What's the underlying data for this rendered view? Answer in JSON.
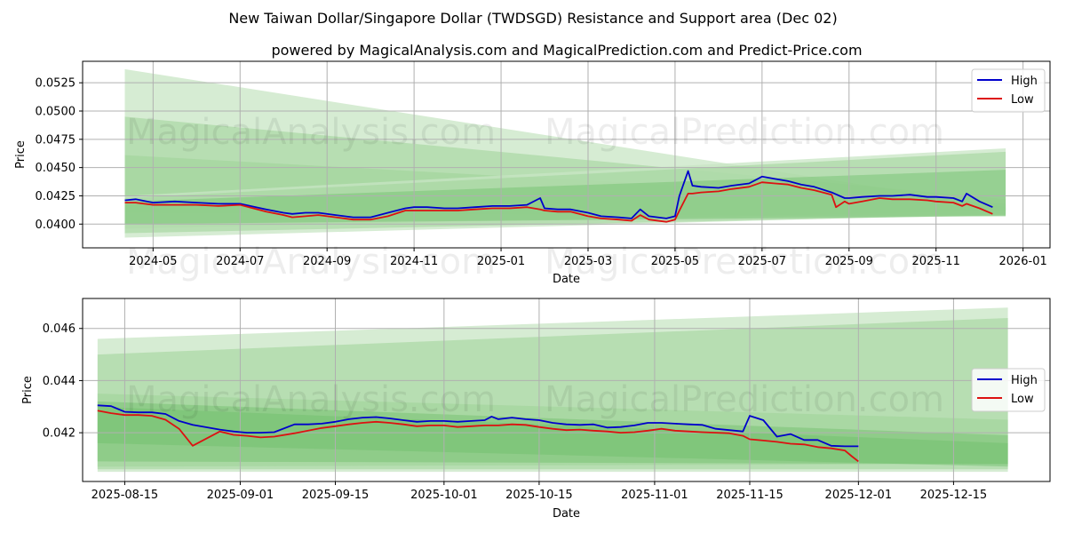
{
  "figure": {
    "title": "New Taiwan Dollar/Singapore Dollar (TWDSGD) Resistance and Support area (Dec 02)",
    "subtitle": "powered by MagicalAnalysis.com and MagicalPrediction.com and Predict-Price.com",
    "watermarks": [
      "MagicalAnalysis.com",
      "MagicalPrediction.com"
    ]
  },
  "colors": {
    "high": "#0000cc",
    "low": "#dd1111",
    "band_light": "#c8e6c4",
    "band_mid": "#9fd397",
    "band_dark": "#6fbf6a",
    "grid": "#b0b0b0"
  },
  "chart_data": [
    {
      "type": "line",
      "name": "top-chart",
      "xlabel": "Date",
      "ylabel": "Price",
      "x_tick_labels": [
        "2024-05",
        "2024-07",
        "2024-09",
        "2024-11",
        "2025-01",
        "2025-03",
        "2025-05",
        "2025-07",
        "2025-09",
        "2025-11",
        "2026-01"
      ],
      "x_tick_values": [
        0.0,
        2.0,
        4.0,
        6.0,
        8.0,
        10.0,
        12.0,
        14.0,
        16.0,
        18.0,
        20.0
      ],
      "y_tick_labels": [
        "0.0400",
        "0.0425",
        "0.0450",
        "0.0475",
        "0.0500",
        "0.0525"
      ],
      "y_tick_values": [
        0.04,
        0.0425,
        0.045,
        0.0475,
        0.05,
        0.0525
      ],
      "xlim": [
        -1.62,
        20.62
      ],
      "ylim": [
        0.0379,
        0.0544
      ],
      "legend": [
        {
          "label": "High"
        },
        {
          "label": "Low"
        }
      ],
      "legend_position": "top-right",
      "bands": [
        {
          "x": [
            -0.65,
            19.6
          ],
          "upper": [
            0.0537,
            0.0415
          ],
          "lower": [
            0.0396,
            0.0412
          ],
          "shade": "band_light"
        },
        {
          "x": [
            -0.65,
            19.6
          ],
          "upper": [
            0.0495,
            0.0422
          ],
          "lower": [
            0.04,
            0.0409
          ],
          "shade": "band_mid"
        },
        {
          "x": [
            -0.65,
            19.6
          ],
          "upper": [
            0.0461,
            0.0418
          ],
          "lower": [
            0.041,
            0.0407
          ],
          "shade": "band_mid"
        },
        {
          "x": [
            -0.65,
            19.6
          ],
          "upper": [
            0.0425,
            0.0467
          ],
          "lower": [
            0.0388,
            0.0409
          ],
          "shade": "band_light"
        },
        {
          "x": [
            -0.65,
            19.6
          ],
          "upper": [
            0.0423,
            0.0464
          ],
          "lower": [
            0.0392,
            0.0408
          ],
          "shade": "band_mid"
        },
        {
          "x": [
            -0.65,
            19.6
          ],
          "upper": [
            0.042,
            0.0448
          ],
          "lower": [
            0.04,
            0.0407
          ],
          "shade": "band_dark"
        }
      ],
      "series": [
        {
          "name": "High",
          "x": [
            -0.65,
            -0.4,
            0.0,
            0.5,
            1.0,
            1.5,
            2.0,
            2.6,
            3.0,
            3.2,
            3.5,
            3.8,
            4.2,
            4.6,
            5.0,
            5.4,
            5.8,
            6.0,
            6.3,
            6.7,
            7.0,
            7.4,
            7.8,
            8.2,
            8.6,
            8.9,
            9.0,
            9.3,
            9.6,
            10.0,
            10.3,
            10.7,
            11.0,
            11.2,
            11.4,
            11.8,
            12.0,
            12.1,
            12.3,
            12.4,
            12.6,
            13.0,
            13.3,
            13.7,
            14.0,
            14.3,
            14.6,
            14.9,
            15.2,
            15.6,
            15.9,
            16.0,
            16.3,
            16.7,
            17.0,
            17.4,
            17.8,
            18.0,
            18.4,
            18.6,
            18.7,
            19.0,
            19.3
          ],
          "values": [
            0.0421,
            0.0422,
            0.0419,
            0.042,
            0.0419,
            0.0418,
            0.0418,
            0.0413,
            0.041,
            0.0409,
            0.041,
            0.041,
            0.0408,
            0.0406,
            0.0406,
            0.041,
            0.0414,
            0.0415,
            0.0415,
            0.0414,
            0.0414,
            0.0415,
            0.0416,
            0.0416,
            0.0417,
            0.0423,
            0.0414,
            0.0413,
            0.0413,
            0.041,
            0.0407,
            0.0406,
            0.0405,
            0.0413,
            0.0407,
            0.0405,
            0.0407,
            0.0425,
            0.0447,
            0.0434,
            0.0433,
            0.0432,
            0.0434,
            0.0436,
            0.0442,
            0.044,
            0.0438,
            0.0435,
            0.0433,
            0.0428,
            0.0423,
            0.0423,
            0.0424,
            0.0425,
            0.0425,
            0.0426,
            0.0424,
            0.0424,
            0.0423,
            0.042,
            0.0427,
            0.042,
            0.0415
          ]
        },
        {
          "name": "Low",
          "x": [
            -0.65,
            -0.4,
            0.0,
            0.5,
            1.0,
            1.5,
            2.0,
            2.6,
            3.0,
            3.2,
            3.5,
            3.8,
            4.2,
            4.6,
            5.0,
            5.4,
            5.8,
            6.0,
            6.3,
            6.7,
            7.0,
            7.4,
            7.8,
            8.2,
            8.6,
            8.9,
            9.0,
            9.3,
            9.6,
            10.0,
            10.3,
            10.7,
            11.0,
            11.2,
            11.4,
            11.8,
            12.0,
            12.1,
            12.3,
            12.4,
            12.6,
            13.0,
            13.3,
            13.7,
            14.0,
            14.3,
            14.6,
            14.9,
            15.2,
            15.6,
            15.7,
            15.9,
            16.0,
            16.3,
            16.7,
            17.0,
            17.4,
            17.8,
            18.0,
            18.4,
            18.6,
            18.7,
            19.0,
            19.3
          ],
          "values": [
            0.0419,
            0.0419,
            0.0417,
            0.0417,
            0.0417,
            0.0416,
            0.0417,
            0.0411,
            0.0408,
            0.0406,
            0.0407,
            0.0408,
            0.0406,
            0.0404,
            0.0404,
            0.0407,
            0.0412,
            0.0412,
            0.0412,
            0.0412,
            0.0412,
            0.0413,
            0.0414,
            0.0414,
            0.0415,
            0.0413,
            0.0412,
            0.0411,
            0.0411,
            0.0407,
            0.0405,
            0.0404,
            0.0403,
            0.0408,
            0.0404,
            0.0402,
            0.0404,
            0.0412,
            0.0427,
            0.0427,
            0.0428,
            0.0429,
            0.0431,
            0.0433,
            0.0437,
            0.0436,
            0.0435,
            0.0432,
            0.043,
            0.0426,
            0.0415,
            0.042,
            0.0418,
            0.042,
            0.0423,
            0.0422,
            0.0422,
            0.0421,
            0.042,
            0.0419,
            0.0416,
            0.0418,
            0.0414,
            0.0409
          ]
        }
      ]
    },
    {
      "type": "line",
      "name": "bottom-chart",
      "xlabel": "Date",
      "ylabel": "Price",
      "x_tick_labels": [
        "2025-08-15",
        "2025-09-01",
        "2025-09-15",
        "2025-10-01",
        "2025-10-15",
        "2025-11-01",
        "2025-11-15",
        "2025-12-01",
        "2025-12-15"
      ],
      "x_tick_values": [
        0,
        17,
        31,
        47,
        61,
        78,
        92,
        108,
        122
      ],
      "y_tick_labels": [
        "0.042",
        "0.044",
        "0.046"
      ],
      "y_tick_values": [
        0.042,
        0.044,
        0.046
      ],
      "xlim": [
        -6.2,
        136.2
      ],
      "ylim": [
        0.04013,
        0.04715
      ],
      "legend": [
        {
          "label": "High"
        },
        {
          "label": "Low"
        }
      ],
      "legend_position": "right",
      "bands": [
        {
          "x": [
            -4,
            130
          ],
          "upper": [
            0.0456,
            0.0468
          ],
          "lower": [
            0.0405,
            0.0405
          ],
          "shade": "band_light"
        },
        {
          "x": [
            -4,
            130
          ],
          "upper": [
            0.045,
            0.0464
          ],
          "lower": [
            0.0406,
            0.0406
          ],
          "shade": "band_mid"
        },
        {
          "x": [
            -4,
            130
          ],
          "upper": [
            0.0435,
            0.0425
          ],
          "lower": [
            0.0407,
            0.0408
          ],
          "shade": "band_mid"
        },
        {
          "x": [
            -4,
            130
          ],
          "upper": [
            0.0432,
            0.0419
          ],
          "lower": [
            0.0409,
            0.0408
          ],
          "shade": "band_dark"
        },
        {
          "x": [
            -4,
            130
          ],
          "upper": [
            0.043,
            0.0416
          ],
          "lower": [
            0.0416,
            0.0407
          ],
          "shade": "band_dark"
        }
      ],
      "series": [
        {
          "name": "High",
          "x": [
            -4,
            -2,
            0,
            2,
            4,
            6,
            8,
            10,
            14,
            16,
            18,
            20,
            22,
            25,
            27,
            29,
            31,
            33,
            35,
            37,
            39,
            41,
            43,
            45,
            47,
            49,
            51,
            53,
            54,
            55,
            57,
            59,
            61,
            63,
            65,
            67,
            69,
            71,
            73,
            75,
            77,
            79,
            81,
            83,
            85,
            87,
            89,
            91,
            92,
            94,
            96,
            98,
            100,
            102,
            104,
            106,
            108
          ],
          "values": [
            0.04305,
            0.04302,
            0.0428,
            0.04278,
            0.04278,
            0.04272,
            0.04245,
            0.0423,
            0.04212,
            0.04205,
            0.042,
            0.042,
            0.04202,
            0.04232,
            0.04232,
            0.04235,
            0.04242,
            0.04252,
            0.04258,
            0.0426,
            0.04255,
            0.04248,
            0.04242,
            0.04245,
            0.04245,
            0.04242,
            0.04245,
            0.04248,
            0.04262,
            0.04252,
            0.04258,
            0.04252,
            0.04248,
            0.04238,
            0.04232,
            0.0423,
            0.04232,
            0.0422,
            0.04222,
            0.04228,
            0.04238,
            0.04238,
            0.04235,
            0.04232,
            0.0423,
            0.04215,
            0.0421,
            0.04205,
            0.04265,
            0.04248,
            0.04185,
            0.04195,
            0.04172,
            0.04172,
            0.0415,
            0.04148,
            0.04148
          ]
        },
        {
          "name": "Low",
          "x": [
            -4,
            -2,
            0,
            2,
            4,
            6,
            8,
            10,
            14,
            16,
            18,
            20,
            22,
            25,
            27,
            29,
            31,
            33,
            35,
            37,
            39,
            41,
            43,
            45,
            47,
            49,
            51,
            53,
            55,
            57,
            59,
            61,
            63,
            65,
            67,
            69,
            71,
            73,
            75,
            77,
            79,
            81,
            83,
            85,
            87,
            89,
            91,
            92,
            94,
            96,
            98,
            100,
            102,
            104,
            106,
            107,
            108
          ],
          "values": [
            0.04285,
            0.04275,
            0.04268,
            0.04268,
            0.04265,
            0.0425,
            0.04215,
            0.0415,
            0.04205,
            0.04192,
            0.04188,
            0.04182,
            0.04185,
            0.04198,
            0.04208,
            0.04218,
            0.04225,
            0.04232,
            0.04238,
            0.04242,
            0.04238,
            0.04232,
            0.04225,
            0.04228,
            0.04228,
            0.04222,
            0.04225,
            0.04228,
            0.04228,
            0.04232,
            0.0423,
            0.04222,
            0.04215,
            0.0421,
            0.04212,
            0.04208,
            0.04205,
            0.042,
            0.04202,
            0.04208,
            0.04215,
            0.04208,
            0.04205,
            0.04202,
            0.042,
            0.04198,
            0.04188,
            0.04175,
            0.0417,
            0.04165,
            0.04158,
            0.04155,
            0.04145,
            0.0414,
            0.04132,
            0.0411,
            0.0409
          ]
        }
      ]
    }
  ]
}
